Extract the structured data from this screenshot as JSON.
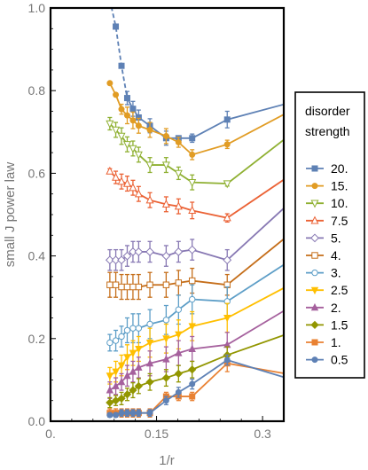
{
  "chart_data": {
    "type": "line",
    "title": "",
    "xlabel": "1/r",
    "ylabel": "small J power law",
    "xlim": [
      0,
      0.33
    ],
    "ylim": [
      0,
      1.0
    ],
    "x_ticks": [
      "0.",
      "0.15",
      "0.3"
    ],
    "y_ticks": [
      "0.0",
      "0.2",
      "0.4",
      "0.6",
      "0.8",
      "1.0"
    ],
    "legend_title": "disorder strength",
    "legend_position": "right",
    "grid": false,
    "series": [
      {
        "name": "20.",
        "color": "#5E81B5",
        "marker": "square",
        "dashed_prefix": true,
        "x": [
          0.0839,
          0.0923,
          0.1004,
          0.1085,
          0.1166,
          0.1247,
          0.1406,
          0.1636,
          0.1811,
          0.2004,
          0.25,
          0.333
        ],
        "y": [
          1.02,
          0.955,
          0.86,
          0.782,
          0.756,
          0.735,
          0.715,
          0.685,
          0.685,
          0.685,
          0.73,
          0.768
        ],
        "err": [
          0,
          0,
          0,
          0.016,
          0.018,
          0.018,
          0.017,
          0.017,
          0,
          0.01,
          0.02,
          0
        ]
      },
      {
        "name": "15.",
        "color": "#E19C24",
        "marker": "circle",
        "x": [
          0.0839,
          0.0923,
          0.1004,
          0.1085,
          0.1166,
          0.1247,
          0.1406,
          0.1636,
          0.1811,
          0.2004,
          0.25,
          0.333
        ],
        "y": [
          0.818,
          0.79,
          0.755,
          0.74,
          0.728,
          0.715,
          0.705,
          0.69,
          0.675,
          0.645,
          0.67,
          0.745
        ],
        "err": [
          0,
          0,
          0.012,
          0.02,
          0.02,
          0.018,
          0.018,
          0.018,
          0.012,
          0.012,
          0.01,
          0
        ]
      },
      {
        "name": "10.",
        "color": "#8FB032",
        "marker": "down-triangle-open",
        "x": [
          0.0839,
          0.0923,
          0.1004,
          0.1085,
          0.1166,
          0.1247,
          0.1406,
          0.1636,
          0.1811,
          0.2004,
          0.25,
          0.333
        ],
        "y": [
          0.72,
          0.705,
          0.69,
          0.67,
          0.66,
          0.645,
          0.62,
          0.62,
          0.6,
          0.578,
          0.575,
          0.685
        ],
        "err": [
          0.015,
          0.018,
          0.02,
          0.018,
          0.018,
          0.018,
          0.018,
          0.018,
          0.015,
          0.018,
          0.006,
          0
        ]
      },
      {
        "name": "7.5",
        "color": "#EB6235",
        "marker": "up-triangle-open",
        "x": [
          0.0839,
          0.0923,
          0.1004,
          0.1085,
          0.1166,
          0.1247,
          0.1406,
          0.1636,
          0.1811,
          0.2004,
          0.25,
          0.333
        ],
        "y": [
          0.605,
          0.59,
          0.58,
          0.575,
          0.565,
          0.55,
          0.535,
          0.525,
          0.52,
          0.51,
          0.492,
          0.588
        ],
        "err": [
          0.006,
          0.015,
          0.018,
          0.018,
          0.018,
          0.018,
          0.018,
          0.018,
          0.018,
          0.02,
          0.01,
          0
        ]
      },
      {
        "name": "5.",
        "color": "#8778B3",
        "marker": "diamond-open",
        "x": [
          0.0839,
          0.0923,
          0.1004,
          0.1085,
          0.1166,
          0.1247,
          0.1406,
          0.1636,
          0.1811,
          0.2004,
          0.25,
          0.333
        ],
        "y": [
          0.39,
          0.39,
          0.39,
          0.4,
          0.41,
          0.41,
          0.41,
          0.4,
          0.41,
          0.415,
          0.39,
          0.52
        ],
        "err": [
          0.025,
          0.025,
          0.025,
          0.025,
          0.025,
          0.025,
          0.025,
          0.025,
          0.025,
          0.025,
          0.025,
          0
        ]
      },
      {
        "name": "4.",
        "color": "#C56E1A",
        "marker": "square-open",
        "x": [
          0.0839,
          0.0923,
          0.1004,
          0.1085,
          0.1166,
          0.1247,
          0.1406,
          0.1636,
          0.1811,
          0.2004,
          0.25,
          0.333
        ],
        "y": [
          0.33,
          0.33,
          0.325,
          0.325,
          0.325,
          0.325,
          0.33,
          0.33,
          0.335,
          0.34,
          0.33,
          0.445
        ],
        "err": [
          0.03,
          0.03,
          0.03,
          0.03,
          0.03,
          0.03,
          0.03,
          0.03,
          0.03,
          0.03,
          0.025,
          0
        ]
      },
      {
        "name": "3.",
        "color": "#5D9EC7",
        "marker": "circle-open",
        "x": [
          0.0839,
          0.0923,
          0.1004,
          0.1085,
          0.1166,
          0.1247,
          0.1406,
          0.1636,
          0.1811,
          0.2004,
          0.25,
          0.333
        ],
        "y": [
          0.19,
          0.195,
          0.205,
          0.22,
          0.225,
          0.225,
          0.235,
          0.245,
          0.27,
          0.295,
          0.29,
          0.382
        ],
        "err": [
          0.02,
          0.025,
          0.025,
          0.03,
          0.035,
          0.035,
          0.035,
          0.035,
          0.035,
          0.035,
          0.035,
          0
        ]
      },
      {
        "name": "2.5",
        "color": "#FFBF00",
        "marker": "down-triangle",
        "x": [
          0.0839,
          0.0923,
          0.1004,
          0.1085,
          0.1166,
          0.1247,
          0.1406,
          0.1636,
          0.1811,
          0.2004,
          0.25,
          0.333
        ],
        "y": [
          0.11,
          0.12,
          0.135,
          0.155,
          0.165,
          0.175,
          0.19,
          0.2,
          0.21,
          0.23,
          0.25,
          0.325
        ],
        "err": [
          0.02,
          0.025,
          0.025,
          0.03,
          0.03,
          0.03,
          0.035,
          0.035,
          0.035,
          0.035,
          0.035,
          0
        ]
      },
      {
        "name": "2.",
        "color": "#A5609D",
        "marker": "up-triangle",
        "x": [
          0.0839,
          0.0923,
          0.1004,
          0.1085,
          0.1166,
          0.1247,
          0.1406,
          0.1636,
          0.1811,
          0.2004,
          0.25,
          0.333
        ],
        "y": [
          0.075,
          0.085,
          0.095,
          0.11,
          0.12,
          0.13,
          0.14,
          0.15,
          0.165,
          0.175,
          0.185,
          0.27
        ],
        "err": [
          0.02,
          0.02,
          0.02,
          0.025,
          0.025,
          0.025,
          0.03,
          0.03,
          0.03,
          0.03,
          0.03,
          0
        ]
      },
      {
        "name": "1.5",
        "color": "#929600",
        "marker": "diamond",
        "x": [
          0.0839,
          0.0923,
          0.1004,
          0.1085,
          0.1166,
          0.1247,
          0.1406,
          0.1636,
          0.1811,
          0.2004,
          0.25,
          0.333
        ],
        "y": [
          0.045,
          0.05,
          0.055,
          0.065,
          0.075,
          0.085,
          0.095,
          0.105,
          0.115,
          0.125,
          0.16,
          0.21
        ],
        "err": [
          0.012,
          0.012,
          0.015,
          0.015,
          0.018,
          0.018,
          0.02,
          0.02,
          0.02,
          0.02,
          0.02,
          0
        ]
      },
      {
        "name": "1.",
        "color": "#E98132",
        "marker": "square",
        "x": [
          0.0839,
          0.0923,
          0.1004,
          0.1085,
          0.1166,
          0.1247,
          0.1406,
          0.1636,
          0.1811,
          0.2004,
          0.25,
          0.333
        ],
        "y": [
          0.02,
          0.02,
          0.02,
          0.02,
          0.02,
          0.02,
          0.02,
          0.06,
          0.06,
          0.06,
          0.14,
          0.115
        ],
        "err": [
          0.01,
          0.01,
          0.01,
          0.01,
          0.01,
          0.01,
          0.01,
          0.01,
          0.01,
          0.01,
          0.02,
          0
        ]
      },
      {
        "name": "0.5",
        "color": "#5E81B5",
        "marker": "circle",
        "x": [
          0.0839,
          0.0923,
          0.1004,
          0.1085,
          0.1166,
          0.1247,
          0.1406,
          0.1636,
          0.1811,
          0.2004,
          0.25,
          0.333
        ],
        "y": [
          0.015,
          0.015,
          0.02,
          0.02,
          0.02,
          0.02,
          0.02,
          0.05,
          0.07,
          0.09,
          0.148,
          0.105
        ],
        "err": [
          0.005,
          0.005,
          0.008,
          0.008,
          0.008,
          0.008,
          0.008,
          0.01,
          0.012,
          0.012,
          0.012,
          0
        ]
      }
    ]
  }
}
